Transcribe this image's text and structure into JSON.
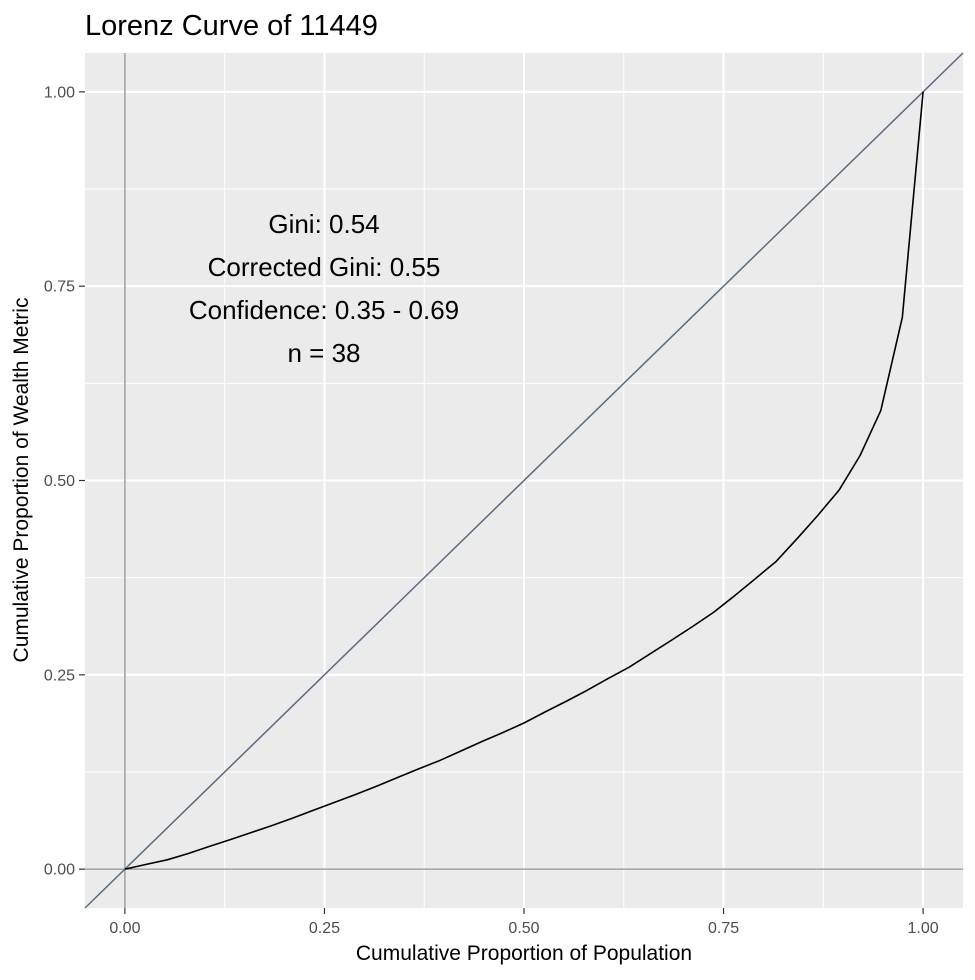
{
  "chart_data": {
    "type": "line",
    "title": "Lorenz Curve of 11449",
    "xlabel": "Cumulative Proportion of Population",
    "ylabel": "Cumulative Proportion of Wealth Metric",
    "xlim": [
      -0.05,
      1.05
    ],
    "ylim": [
      -0.05,
      1.05
    ],
    "x_ticks": [
      0.0,
      0.25,
      0.5,
      0.75,
      1.0
    ],
    "x_tick_labels": [
      "0.00",
      "0.25",
      "0.50",
      "0.75",
      "1.00"
    ],
    "y_ticks": [
      0.0,
      0.25,
      0.5,
      0.75,
      1.0
    ],
    "y_tick_labels": [
      "0.00",
      "0.25",
      "0.50",
      "0.75",
      "1.00"
    ],
    "grid": true,
    "reference_lines": {
      "vertical_x": 0,
      "horizontal_y": 0,
      "equality_line": {
        "slope": 1,
        "intercept": 0
      }
    },
    "series": [
      {
        "points": [
          [
            0.0,
            0.0
          ],
          [
            0.026,
            0.006
          ],
          [
            0.053,
            0.012
          ],
          [
            0.079,
            0.02
          ],
          [
            0.105,
            0.029
          ],
          [
            0.132,
            0.038
          ],
          [
            0.158,
            0.047
          ],
          [
            0.184,
            0.056
          ],
          [
            0.211,
            0.066
          ],
          [
            0.237,
            0.076
          ],
          [
            0.263,
            0.086
          ],
          [
            0.289,
            0.096
          ],
          [
            0.316,
            0.107
          ],
          [
            0.342,
            0.118
          ],
          [
            0.368,
            0.129
          ],
          [
            0.395,
            0.14
          ],
          [
            0.421,
            0.152
          ],
          [
            0.447,
            0.164
          ],
          [
            0.474,
            0.176
          ],
          [
            0.5,
            0.188
          ],
          [
            0.526,
            0.202
          ],
          [
            0.553,
            0.216
          ],
          [
            0.579,
            0.23
          ],
          [
            0.605,
            0.245
          ],
          [
            0.632,
            0.26
          ],
          [
            0.658,
            0.277
          ],
          [
            0.684,
            0.294
          ],
          [
            0.711,
            0.312
          ],
          [
            0.737,
            0.33
          ],
          [
            0.763,
            0.351
          ],
          [
            0.789,
            0.373
          ],
          [
            0.816,
            0.396
          ],
          [
            0.842,
            0.425
          ],
          [
            0.868,
            0.455
          ],
          [
            0.895,
            0.488
          ],
          [
            0.921,
            0.532
          ],
          [
            0.947,
            0.59
          ],
          [
            0.974,
            0.71
          ],
          [
            1.0,
            1.0
          ]
        ],
        "color": "#000000"
      }
    ],
    "annotations": [
      "Gini: 0.54",
      "Corrected Gini: 0.55",
      "Confidence: 0.35 - 0.69",
      "n = 38"
    ],
    "colors": {
      "panel_background": "#EBEBEB",
      "grid": "#FFFFFF",
      "reference_axis_lines": "#8C8C8C",
      "equality_line": "#5A6B80",
      "curve": "#000000"
    }
  }
}
